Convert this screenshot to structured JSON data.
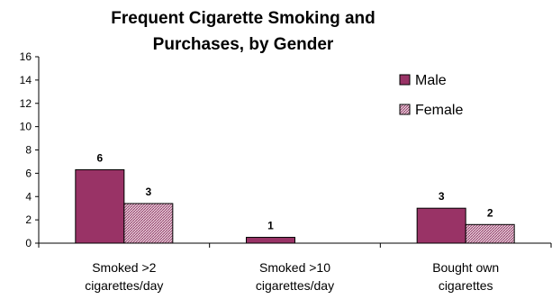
{
  "chart_data": {
    "type": "bar",
    "title_lines": [
      "Frequent Cigarette Smoking and",
      "Purchases, by Gender"
    ],
    "categories": [
      [
        "Smoked >2",
        "cigarettes/day"
      ],
      [
        "Smoked >10",
        "cigarettes/day"
      ],
      [
        "Bought own",
        "cigarettes"
      ]
    ],
    "series": [
      {
        "name": "Male",
        "values": [
          6.3,
          0.5,
          3.0
        ],
        "labels": [
          "6",
          "1",
          "3"
        ],
        "color": "#993366",
        "pattern": "solid"
      },
      {
        "name": "Female",
        "values": [
          3.4,
          0,
          1.6
        ],
        "labels": [
          "3",
          "",
          "2"
        ],
        "color": "#993366",
        "pattern": "hatched"
      }
    ],
    "yticks": [
      0,
      2,
      4,
      6,
      8,
      10,
      12,
      14,
      16
    ],
    "ylim": [
      0,
      16
    ],
    "xlabel": "",
    "ylabel": "",
    "grid": false,
    "legend_position": "top-right"
  }
}
